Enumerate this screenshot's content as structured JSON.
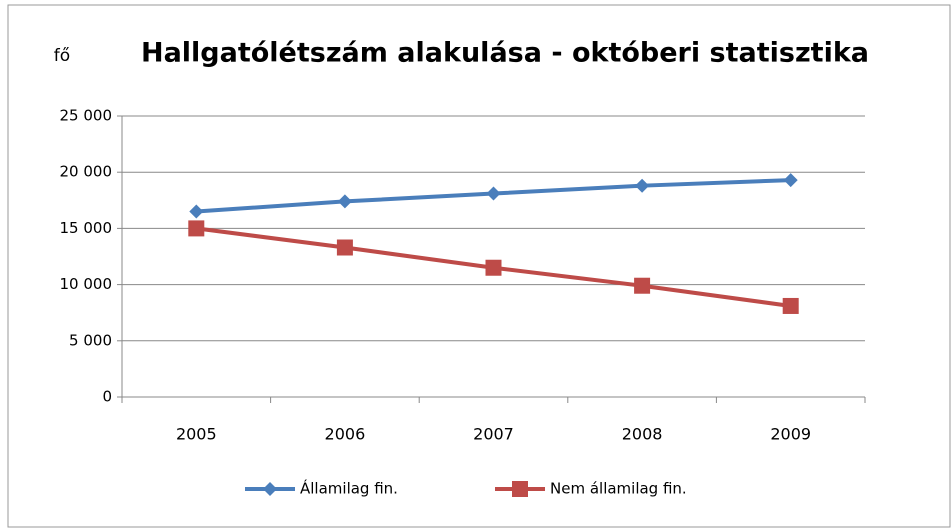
{
  "chart_data": {
    "type": "line",
    "title": "Hallgatólétszám alakulása - októberi statisztika",
    "y_label": "fő",
    "categories": [
      "2005",
      "2006",
      "2007",
      "2008",
      "2009"
    ],
    "series": [
      {
        "name": "Államilag fin.",
        "color": "#4a7ebb",
        "marker": "diamond",
        "values": [
          16500,
          17400,
          18100,
          18800,
          19300
        ]
      },
      {
        "name": "Nem államilag fin.",
        "color": "#be4b48",
        "marker": "square",
        "values": [
          15000,
          13300,
          11500,
          9900,
          8100
        ]
      }
    ],
    "ylim": [
      0,
      25000
    ],
    "yticks": [
      0,
      {
        "value": 5000,
        "label": "5 000"
      },
      {
        "value": 10000,
        "label": "10 000"
      },
      {
        "value": 15000,
        "label": "15 000"
      },
      {
        "value": 20000,
        "label": "20 000"
      },
      {
        "value": 25000,
        "label": "25 000"
      }
    ],
    "grid": true,
    "legend": "bottom"
  }
}
